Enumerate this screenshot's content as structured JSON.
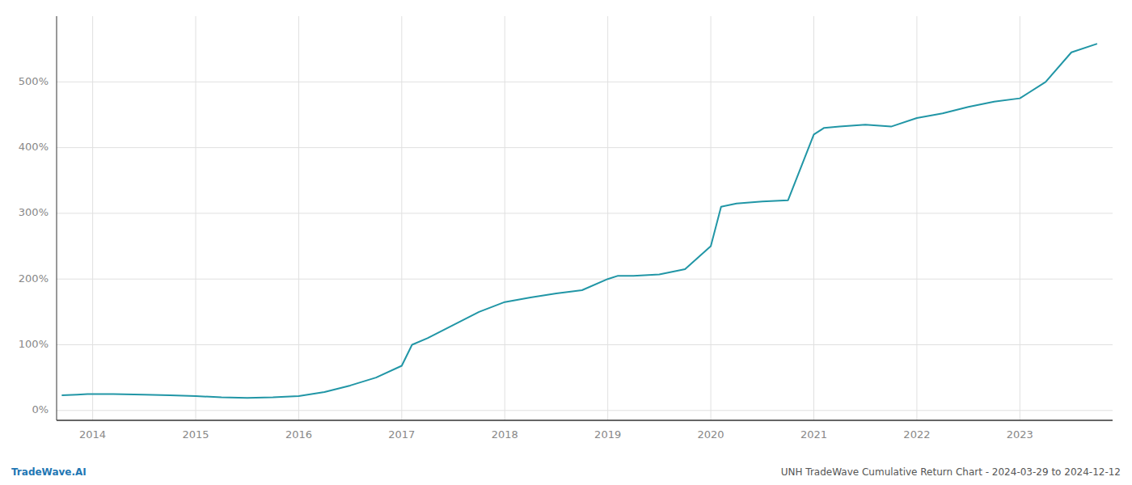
{
  "chart_data": {
    "type": "line",
    "x": [
      2013.7,
      2013.85,
      2013.95,
      2014.0,
      2014.2,
      2014.5,
      2014.75,
      2015.0,
      2015.25,
      2015.5,
      2015.75,
      2016.0,
      2016.25,
      2016.5,
      2016.75,
      2017.0,
      2017.1,
      2017.25,
      2017.5,
      2017.75,
      2018.0,
      2018.25,
      2018.5,
      2018.75,
      2019.0,
      2019.1,
      2019.25,
      2019.5,
      2019.75,
      2020.0,
      2020.1,
      2020.25,
      2020.5,
      2020.75,
      2021.0,
      2021.1,
      2021.25,
      2021.5,
      2021.75,
      2022.0,
      2022.25,
      2022.5,
      2022.75,
      2023.0,
      2023.25,
      2023.5,
      2023.75
    ],
    "values": [
      23,
      24,
      25,
      25,
      25,
      24,
      23,
      22,
      20,
      19,
      20,
      22,
      28,
      38,
      50,
      68,
      100,
      110,
      130,
      150,
      165,
      172,
      178,
      183,
      200,
      205,
      205,
      207,
      215,
      250,
      310,
      315,
      318,
      320,
      420,
      430,
      432,
      435,
      432,
      445,
      452,
      462,
      470,
      475,
      500,
      545,
      558
    ],
    "color": "#2196a6",
    "xlim": [
      2013.65,
      2023.9
    ],
    "xticks": [
      2014,
      2015,
      2016,
      2017,
      2018,
      2019,
      2020,
      2021,
      2022,
      2023
    ],
    "ylim": [
      -15,
      600
    ],
    "yticks": [
      {
        "value": 0,
        "label": "0%"
      },
      {
        "value": 100,
        "label": "100%"
      },
      {
        "value": 200,
        "label": "200%"
      },
      {
        "value": 300,
        "label": "300%"
      },
      {
        "value": 400,
        "label": "400%"
      },
      {
        "value": 500,
        "label": "500%"
      }
    ],
    "grid": true,
    "annotations": [
      {
        "text": "TradeWave.AI",
        "color": "#1f77b4"
      },
      {
        "text": "UNH TradeWave Cumulative Return Chart - 2024-03-29 to 2024-12-12",
        "color": "#555555"
      }
    ]
  }
}
